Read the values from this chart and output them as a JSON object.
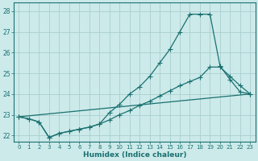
{
  "xlabel": "Humidex (Indice chaleur)",
  "background_color": "#cceaea",
  "grid_color": "#aacece",
  "line_color": "#1a7070",
  "xlim": [
    -0.5,
    23.5
  ],
  "ylim": [
    21.7,
    28.4
  ],
  "xticks": [
    0,
    1,
    2,
    3,
    4,
    5,
    6,
    7,
    8,
    9,
    10,
    11,
    12,
    13,
    14,
    15,
    16,
    17,
    18,
    19,
    20,
    21,
    22,
    23
  ],
  "yticks": [
    22,
    23,
    24,
    25,
    26,
    27,
    28
  ],
  "line1_x": [
    0,
    1,
    2,
    3,
    4,
    5,
    6,
    7,
    8,
    9,
    10,
    11,
    12,
    13,
    14,
    15,
    16,
    17,
    18,
    19,
    20,
    21,
    22,
    23
  ],
  "line1_y": [
    22.9,
    22.8,
    22.65,
    21.9,
    22.1,
    22.2,
    22.3,
    22.4,
    22.55,
    23.1,
    23.5,
    24.0,
    24.35,
    24.85,
    25.5,
    26.15,
    27.0,
    27.85,
    27.85,
    27.85,
    25.35,
    24.7,
    24.1,
    24.0
  ],
  "line2_x": [
    0,
    1,
    2,
    3,
    4,
    5,
    6,
    7,
    8,
    9,
    10,
    11,
    12,
    13,
    14,
    15,
    16,
    17,
    18,
    19,
    20,
    21,
    22,
    23
  ],
  "line2_y": [
    22.9,
    22.8,
    22.65,
    21.9,
    22.1,
    22.2,
    22.3,
    22.4,
    22.55,
    22.75,
    23.0,
    23.2,
    23.45,
    23.65,
    23.9,
    24.15,
    24.4,
    24.6,
    24.8,
    25.3,
    25.3,
    24.85,
    24.4,
    24.0
  ],
  "line3_x": [
    0,
    23
  ],
  "line3_y": [
    22.9,
    24.0
  ]
}
